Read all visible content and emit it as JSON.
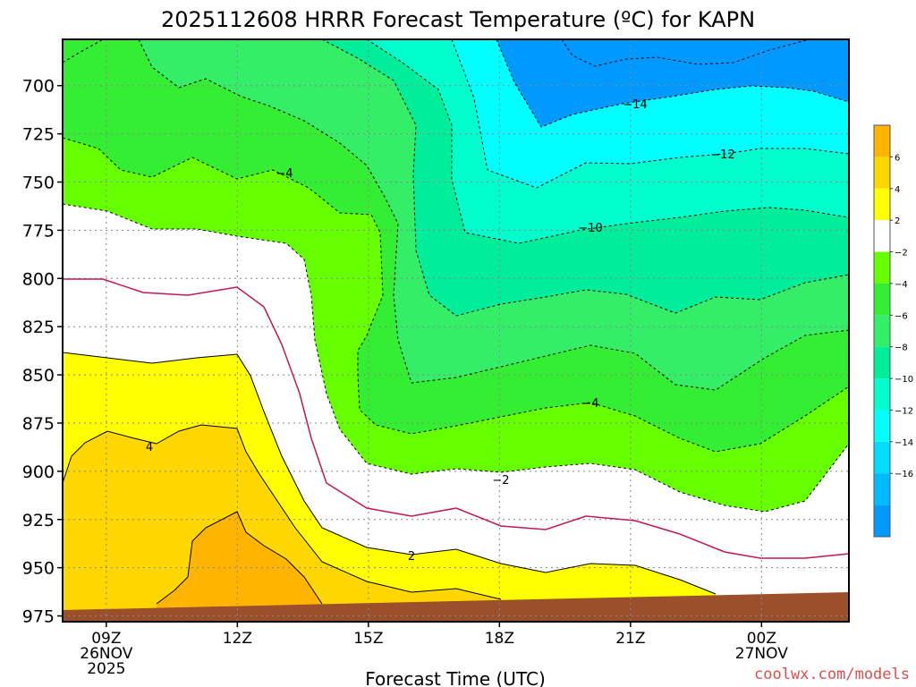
{
  "chart_data": {
    "type": "contour",
    "title": "2025112608 HRRR Forecast Temperature (ºC) for KAPN",
    "xlabel": "Forecast Time (UTC)",
    "ylabel": "",
    "watermark": "coolwx.com/models",
    "x_ticks": [
      {
        "hour": 9,
        "label": "09Z",
        "sub": [
          "26NOV",
          "2025"
        ]
      },
      {
        "hour": 12,
        "label": "12Z",
        "sub": []
      },
      {
        "hour": 15,
        "label": "15Z",
        "sub": []
      },
      {
        "hour": 18,
        "label": "18Z",
        "sub": []
      },
      {
        "hour": 21,
        "label": "21Z",
        "sub": []
      },
      {
        "hour": 24,
        "label": "00Z",
        "sub": [
          "27NOV"
        ]
      }
    ],
    "x_range_hours": [
      8,
      26
    ],
    "y_ticks": [
      700,
      725,
      750,
      775,
      800,
      825,
      850,
      875,
      900,
      925,
      950,
      975
    ],
    "y_range_hpa": [
      676,
      978
    ],
    "contour_interval_c": 2,
    "contour_labels": [
      {
        "value": -14,
        "text": "−14"
      },
      {
        "value": -12,
        "text": "−12"
      },
      {
        "value": -10,
        "text": "−10"
      },
      {
        "value": -4,
        "text": "−4"
      },
      {
        "value": -4,
        "text": "−4"
      },
      {
        "value": -2,
        "text": "−2"
      },
      {
        "value": 4,
        "text": "4"
      },
      {
        "value": 2,
        "text": "2"
      }
    ],
    "colorbar": {
      "labels": [
        "6",
        "4",
        "2",
        "−2",
        "−4",
        "−6",
        "−8",
        "−10",
        "−12",
        "−14",
        "−16"
      ],
      "colors": [
        "#ffb400",
        "#ffd700",
        "#ffff00",
        "#ffffff",
        "#66ff00",
        "#33ee33",
        "#33ee66",
        "#00ee99",
        "#00ffcc",
        "#00ffff",
        "#00ddff",
        "#00bbff",
        "#0099ff"
      ]
    },
    "fills": {
      "t6": "#ffb400",
      "t4": "#ffd700",
      "t2": "#ffff00",
      "t0": "#ffffff",
      "tm2": "#66ff00",
      "tm4": "#33ee33",
      "tm6": "#33ee66",
      "tm8": "#00ee99",
      "tm10": "#00ffcc",
      "tm12": "#00ffff",
      "tm14": "#00ccff",
      "tm16": "#0099ff",
      "ground": "#9b4f2a"
    }
  }
}
